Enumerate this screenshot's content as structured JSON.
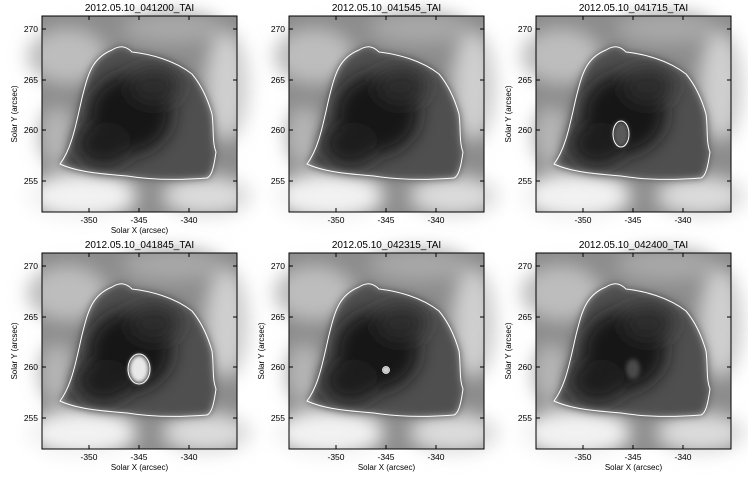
{
  "figure": {
    "panels": [
      {
        "title": "2012.05.10_041200_TAI",
        "xlabel": "Solar X (arcsec)",
        "ylabel": "Solar Y (arcsec)",
        "bright_feature": "none"
      },
      {
        "title": "2012.05.10_041545_TAI",
        "xlabel": "",
        "ylabel": "",
        "bright_feature": "none"
      },
      {
        "title": "2012.05.10_041715_TAI",
        "xlabel": "",
        "ylabel": "Solar Y (arcsec)",
        "bright_feature": "ring"
      },
      {
        "title": "2012.05.10_041845_TAI",
        "xlabel": "Solar X (arcsec)",
        "ylabel": "Solar Y (arcsec)",
        "bright_feature": "blob"
      },
      {
        "title": "2012.05.10_042315_TAI",
        "xlabel": "Solar X (arcsec)",
        "ylabel": "Solar Y (arcsec)",
        "bright_feature": "dot"
      },
      {
        "title": "2012.05.10_042400_TAI",
        "xlabel": "Solar X (arcsec)",
        "ylabel": "Solar Y (arcsec)",
        "bright_feature": "faint"
      }
    ],
    "x_ticks": [
      "-350",
      "-345",
      "-340"
    ],
    "y_ticks": [
      "270",
      "265",
      "260",
      "255"
    ]
  }
}
